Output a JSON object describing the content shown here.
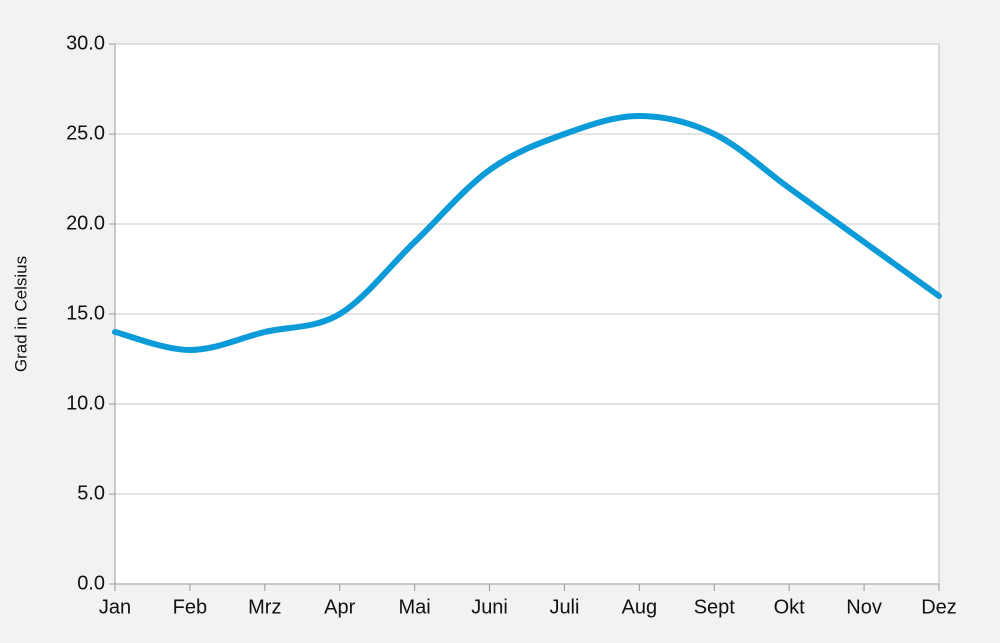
{
  "chart_data": {
    "type": "line",
    "y_label": "Grad in Celsius",
    "categories": [
      "Jan",
      "Feb",
      "Mrz",
      "Apr",
      "Mai",
      "Juni",
      "Juli",
      "Aug",
      "Sept",
      "Okt",
      "Nov",
      "Dez"
    ],
    "series": [
      {
        "color": "#0b9bd9",
        "values": [
          14,
          13,
          14,
          15,
          19,
          23,
          25,
          26,
          25,
          22,
          19,
          16
        ]
      }
    ],
    "ylim": [
      0,
      30
    ],
    "yticks": [
      {
        "value": 0,
        "label": "0.0"
      },
      {
        "value": 5,
        "label": "5.0"
      },
      {
        "value": 10,
        "label": "10.0"
      },
      {
        "value": 15,
        "label": "15.0"
      },
      {
        "value": 20,
        "label": "20.0"
      },
      {
        "value": 25,
        "label": "25.0"
      },
      {
        "value": 30,
        "label": "30.0"
      }
    ],
    "grid": true,
    "smooth": true
  }
}
